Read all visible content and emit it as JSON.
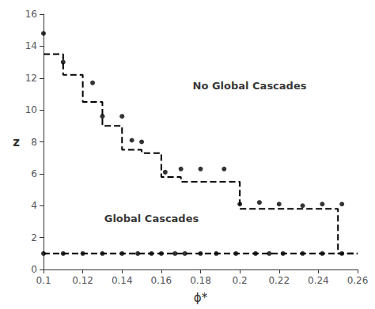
{
  "chart_data": {
    "type": "line",
    "title": "",
    "xlabel": "ϕ*",
    "ylabel": "z",
    "xlim": [
      0.1,
      0.26
    ],
    "ylim": [
      0,
      16
    ],
    "xticks": [
      0.1,
      0.12,
      0.14,
      0.16,
      0.18,
      0.2,
      0.22,
      0.24,
      0.26
    ],
    "yticks": [
      0,
      2,
      4,
      6,
      8,
      10,
      12,
      14,
      16
    ],
    "grid": false,
    "series": [
      {
        "type": "line",
        "color": "#000000",
        "line_style": "dashed",
        "marker": "none",
        "x": [
          0.1,
          0.11,
          0.11,
          0.12,
          0.12,
          0.13,
          0.13,
          0.14,
          0.14,
          0.15,
          0.15,
          0.16,
          0.16,
          0.17,
          0.17,
          0.2,
          0.2,
          0.25,
          0.25,
          0.26
        ],
        "values": [
          13.5,
          13.5,
          12.2,
          12.2,
          10.5,
          10.5,
          9.0,
          9.0,
          7.5,
          7.5,
          7.3,
          7.3,
          5.8,
          5.8,
          5.5,
          5.5,
          3.8,
          3.8,
          1.0,
          1.0
        ]
      },
      {
        "type": "line",
        "color": "#000000",
        "line_style": "dashed",
        "marker": "none",
        "x": [
          0.1,
          0.26
        ],
        "values": [
          1.0,
          1.0
        ]
      },
      {
        "type": "scatter",
        "color": "#000000",
        "marker": "circle",
        "x": [
          0.1,
          0.11,
          0.125,
          0.13,
          0.14,
          0.145,
          0.15,
          0.162,
          0.17,
          0.18,
          0.192,
          0.2,
          0.21,
          0.22,
          0.232,
          0.242,
          0.252
        ],
        "values": [
          14.8,
          13.0,
          11.7,
          9.6,
          9.6,
          8.1,
          8.0,
          6.1,
          6.3,
          6.3,
          6.3,
          4.1,
          4.2,
          4.1,
          4.0,
          4.1,
          4.1
        ]
      },
      {
        "type": "scatter",
        "color": "#000000",
        "marker": "circle",
        "x": [
          0.1,
          0.11,
          0.12,
          0.13,
          0.14,
          0.148,
          0.155,
          0.16,
          0.167,
          0.172,
          0.18,
          0.188,
          0.198,
          0.208,
          0.215,
          0.222,
          0.232,
          0.242,
          0.252
        ],
        "values": [
          1.0,
          1.0,
          1.0,
          1.0,
          1.0,
          1.0,
          1.0,
          1.0,
          1.0,
          1.0,
          1.0,
          1.0,
          1.0,
          1.0,
          1.0,
          1.0,
          1.0,
          1.0,
          1.0
        ]
      }
    ],
    "annotations": [
      {
        "text": "No Global Cascades",
        "x": 0.205,
        "y": 11.5,
        "color": "#000000"
      },
      {
        "text": "Global Cascades",
        "x": 0.155,
        "y": 3.2,
        "color": "#000000"
      }
    ]
  }
}
